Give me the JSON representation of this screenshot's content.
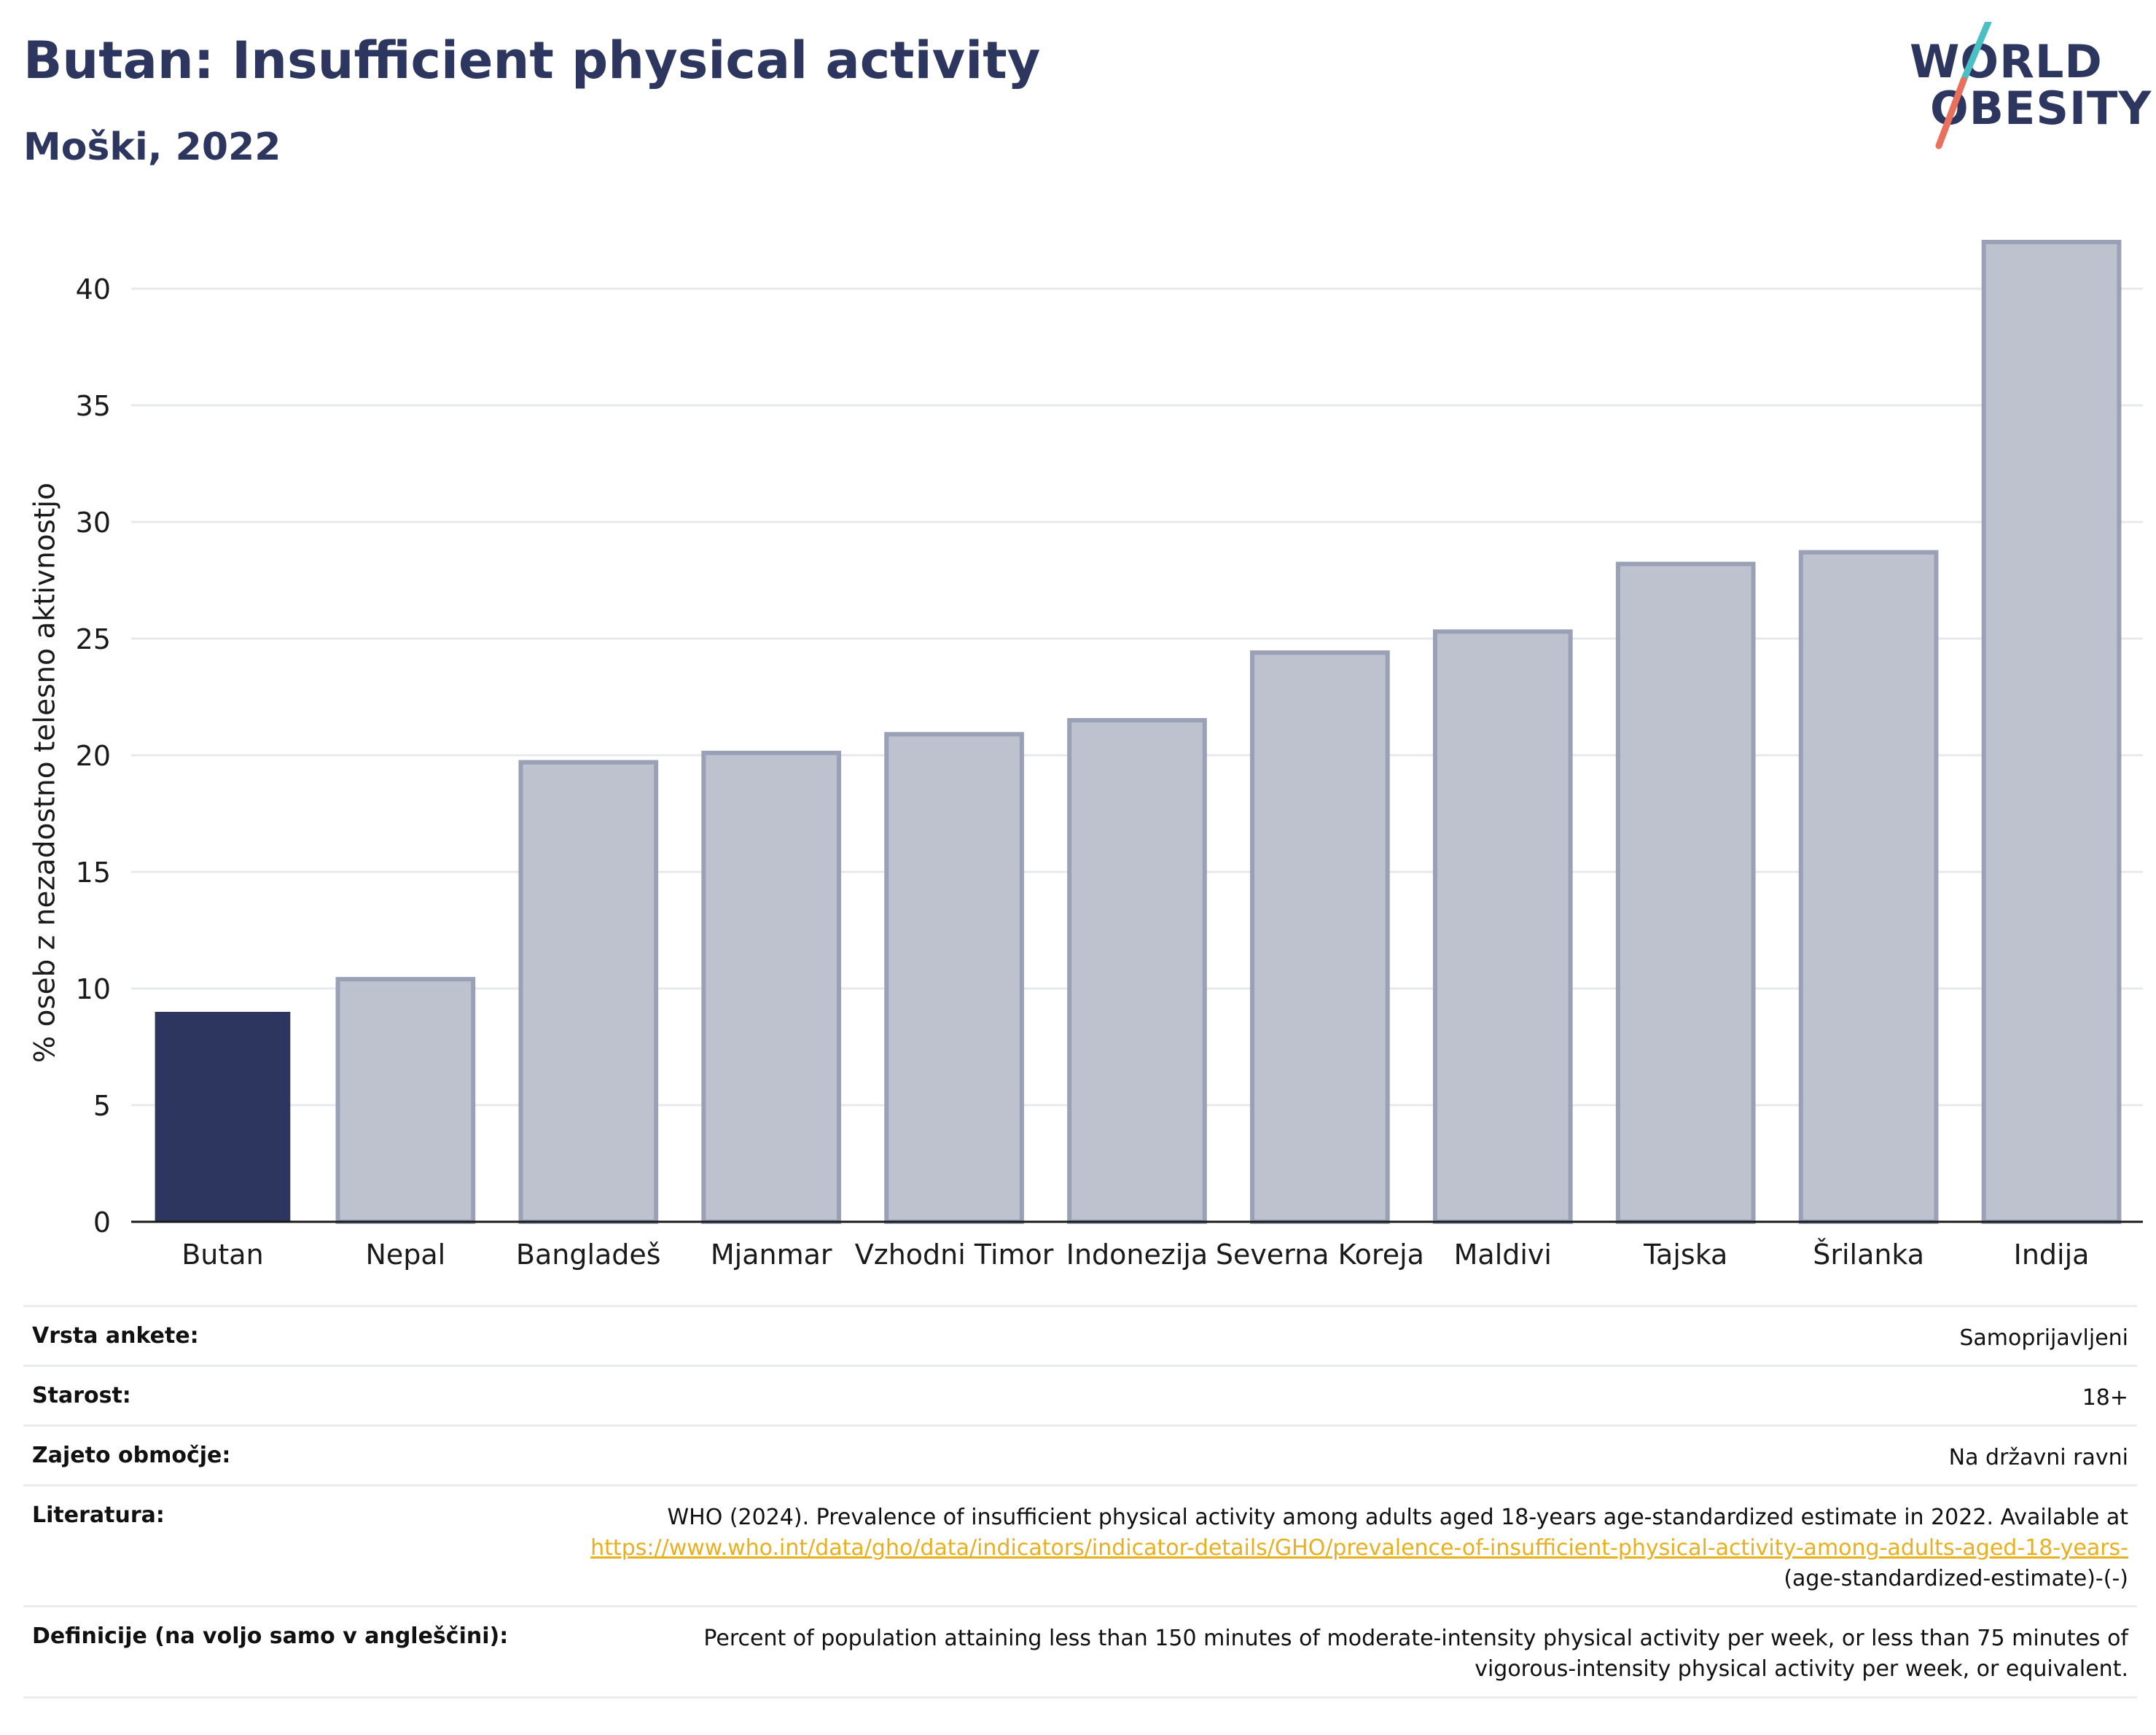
{
  "header": {
    "title": "Butan: Insufficient physical activity",
    "subtitle": "Moški, 2022"
  },
  "logo": {
    "line1": "WORLD",
    "line2": "OBESITY",
    "slash_colors": [
      "#4bbfc4",
      "#e8705d"
    ]
  },
  "colors": {
    "highlight": "#2c365e",
    "bar_fill": "#bec2cf",
    "bar_stroke": "#9aa0b5",
    "gridline": "#e6e8ec",
    "link": "#e8b020"
  },
  "chart_data": {
    "type": "bar",
    "title": "Butan: Insufficient physical activity",
    "subtitle": "Moški, 2022",
    "ylabel": "% oseb z nezadostno telesno aktivnostjo",
    "xlabel": "",
    "ylim": [
      0,
      43
    ],
    "yticks": [
      0,
      5,
      10,
      15,
      20,
      25,
      30,
      35,
      40
    ],
    "grid": true,
    "highlight_category": "Butan",
    "categories": [
      "Butan",
      "Nepal",
      "Bangladeš",
      "Mjanmar",
      "Vzhodni Timor",
      "Indonezija",
      "Severna Koreja",
      "Maldivi",
      "Tajska",
      "Šrilanka",
      "Indija"
    ],
    "values": [
      9.0,
      10.4,
      19.7,
      20.1,
      20.9,
      21.5,
      24.4,
      25.3,
      28.2,
      28.7,
      42.0
    ]
  },
  "info": {
    "survey_type_label": "Vrsta ankete:",
    "survey_type_value": "Samoprijavljeni",
    "age_label": "Starost:",
    "age_value": "18+",
    "coverage_label": "Zajeto območje:",
    "coverage_value": "Na državni ravni",
    "reference_label": "Literatura:",
    "reference_text": "WHO (2024). Prevalence of insufficient physical activity among adults aged 18-years age-standardized estimate in 2022. Available at",
    "reference_link": "https://www.who.int/data/gho/data/indicators/indicator-details/GHO/prevalence-of-insufficient-physical-activity-among-adults-aged-18-years-",
    "reference_tail": "(age-standardized-estimate)-(-)",
    "definition_label": "Definicije (na voljo samo v angleščini):",
    "definition_text": "Percent of population attaining less than 150 minutes of moderate-intensity physical activity per week, or less than 75 minutes of vigorous-intensity physical activity per week, or equivalent."
  }
}
